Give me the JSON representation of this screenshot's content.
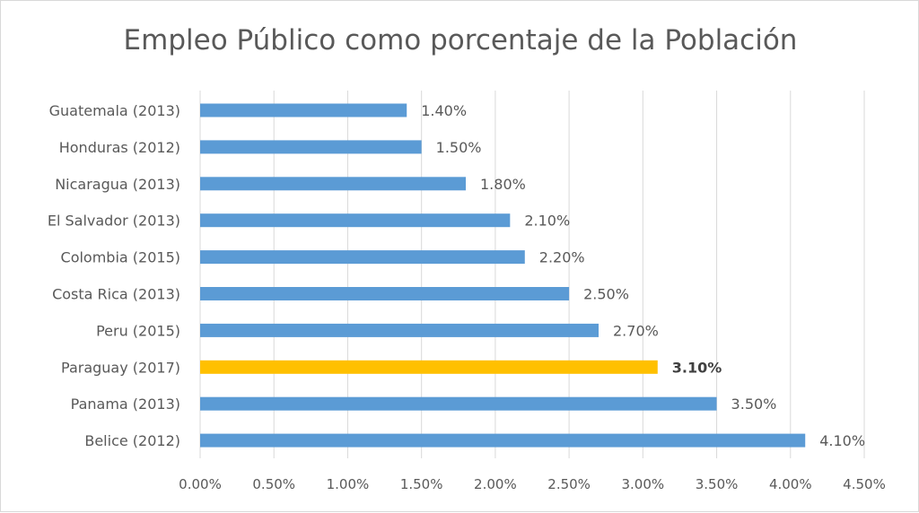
{
  "chart_data": {
    "type": "bar",
    "orientation": "horizontal",
    "title": "Empleo Público como porcentaje de la Población",
    "xlabel": "",
    "ylabel": "",
    "xlim": [
      0,
      4.5
    ],
    "grid": true,
    "legend": "none",
    "colors": {
      "default": "#5b9bd5",
      "highlight": "#ffc000",
      "grid": "#d9d9d9",
      "text": "#595959"
    },
    "ticks": [
      "0.00%",
      "0.50%",
      "1.00%",
      "1.50%",
      "2.00%",
      "2.50%",
      "3.00%",
      "3.50%",
      "4.00%",
      "4.50%"
    ],
    "categories": [
      "Guatemala (2013)",
      "Honduras (2012)",
      "Nicaragua (2013)",
      "El Salvador (2013)",
      "Colombia (2015)",
      "Costa Rica (2013)",
      "Peru (2015)",
      "Paraguay (2017)",
      "Panama (2013)",
      "Belice (2012)"
    ],
    "values": [
      1.4,
      1.5,
      1.8,
      2.1,
      2.2,
      2.5,
      2.7,
      3.1,
      3.5,
      4.1
    ],
    "data_labels": [
      "1.40%",
      "1.50%",
      "1.80%",
      "2.10%",
      "2.20%",
      "2.50%",
      "2.70%",
      "3.10%",
      "3.50%",
      "4.10%"
    ],
    "highlight": [
      "Paraguay (2017)"
    ]
  }
}
